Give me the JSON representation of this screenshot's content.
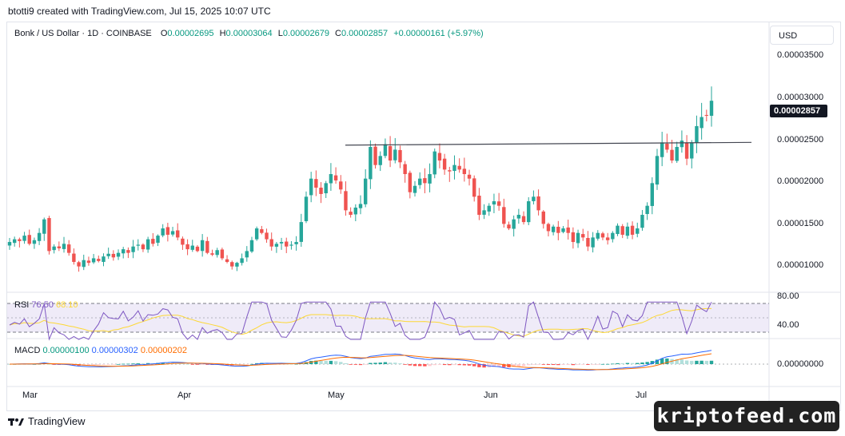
{
  "header": {
    "caption": "btotti9 created with TradingView.com, Jul 15, 2025 10:07 UTC"
  },
  "legend": {
    "symbol": "Bonk / US Dollar · 1D · COINBASE",
    "open_label": "O",
    "open": "0.00002695",
    "high_label": "H",
    "high": "0.00003064",
    "low_label": "L",
    "low": "0.00002679",
    "close_label": "C",
    "close": "0.00002857",
    "change": "+0.00000161 (+5.97%)"
  },
  "currency": "USD",
  "last_price": "0.00002857",
  "price_axis": [
    "0.00003500",
    "0.00003000",
    "0.00002500",
    "0.00002000",
    "0.00001500",
    "0.00001000"
  ],
  "rsi": {
    "label": "RSI",
    "value": "76.50",
    "ma": "68.10",
    "axis": [
      "80.00",
      "40.00"
    ]
  },
  "macd": {
    "label": "MACD",
    "hist": "0.00000100",
    "macd": "0.00000302",
    "signal": "0.00000202",
    "axis": "0.00000000"
  },
  "time_axis": [
    "Mar",
    "Apr",
    "May",
    "Jun",
    "Jul"
  ],
  "footer": {
    "brand": "TradingView"
  },
  "watermark": "kriptofeed.com",
  "colors": {
    "up": "#089981",
    "down": "#f23645",
    "candle_up": "#26a69a",
    "candle_down": "#ef5350",
    "rsi": "#7e57c2",
    "rsi_ma": "#fdd835",
    "macd": "#2962ff",
    "signal": "#ff6d00"
  },
  "chart_data": {
    "type": "candlestick",
    "title": "Bonk / US Dollar · 1D · COINBASE",
    "ylim": [
      7.8e-06,
      3.62e-05
    ],
    "resistance_line": {
      "from": "2025-05-01",
      "to": "2025-07-15",
      "value_start": 2.37e-05,
      "value_end": 2.4e-05
    },
    "close_series": [
      1.3e-05,
      1.33e-05,
      1.31e-05,
      1.37e-05,
      1.28e-05,
      1.32e-05,
      1.4e-05,
      1.55e-05,
      1.2e-05,
      1.25e-05,
      1.23e-05,
      1.28e-05,
      1.18e-05,
      1.08e-05,
      1.03e-05,
      1.1e-05,
      1.07e-05,
      1.12e-05,
      1.09e-05,
      1.14e-05,
      1.17e-05,
      1.13e-05,
      1.18e-05,
      1.22e-05,
      1.18e-05,
      1.25e-05,
      1.27e-05,
      1.22e-05,
      1.33e-05,
      1.28e-05,
      1.37e-05,
      1.45e-05,
      1.38e-05,
      1.42e-05,
      1.35e-05,
      1.27e-05,
      1.22e-05,
      1.26e-05,
      1.2e-05,
      1.32e-05,
      1.18e-05,
      1.16e-05,
      1.21e-05,
      1.12e-05,
      1.08e-05,
      1.03e-05,
      1.07e-05,
      1.12e-05,
      1.2e-05,
      1.32e-05,
      1.45e-05,
      1.4e-05,
      1.33e-05,
      1.25e-05,
      1.28e-05,
      1.3e-05,
      1.25e-05,
      1.27e-05,
      1.3e-05,
      1.52e-05,
      1.8e-05,
      2e-05,
      1.9e-05,
      1.83e-05,
      1.95e-05,
      2.05e-05,
      1.98e-05,
      1.88e-05,
      1.65e-05,
      1.6e-05,
      1.68e-05,
      1.72e-05,
      2e-05,
      2.35e-05,
      2.15e-05,
      2.25e-05,
      2.38e-05,
      2.2e-05,
      2.32e-05,
      2.18e-05,
      2.05e-05,
      1.85e-05,
      1.92e-05,
      2e-05,
      1.95e-05,
      2.05e-05,
      2.3e-05,
      2.2e-05,
      2.1e-05,
      2.08e-05,
      2.15e-05,
      2.1e-05,
      2.05e-05,
      2e-05,
      1.8e-05,
      1.6e-05,
      1.65e-05,
      1.7e-05,
      1.75e-05,
      1.7e-05,
      1.5e-05,
      1.45e-05,
      1.55e-05,
      1.6e-05,
      1.52e-05,
      1.75e-05,
      1.8e-05,
      1.65e-05,
      1.5e-05,
      1.42e-05,
      1.47e-05,
      1.4e-05,
      1.45e-05,
      1.4e-05,
      1.3e-05,
      1.4e-05,
      1.35e-05,
      1.25e-05,
      1.35e-05,
      1.4e-05,
      1.35e-05,
      1.32e-05,
      1.4e-05,
      1.48e-05,
      1.38e-05,
      1.47e-05,
      1.38e-05,
      1.45e-05,
      1.6e-05,
      1.7e-05,
      1.95e-05,
      2.25e-05,
      2.4e-05,
      2.32e-05,
      2.2e-05,
      2.35e-05,
      2.42e-05,
      2.22e-05,
      2.4e-05,
      2.58e-05,
      2.68e-05,
      2.7e-05,
      2.86e-05
    ]
  }
}
